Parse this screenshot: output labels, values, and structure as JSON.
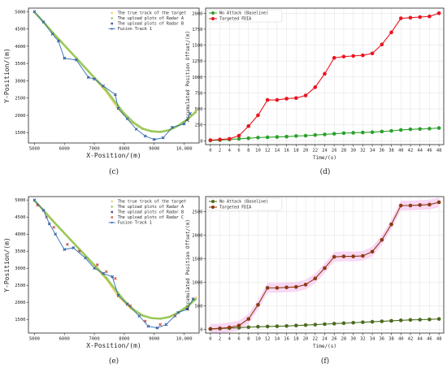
{
  "chart_data": [
    {
      "type": "scatter",
      "caption": "(c)",
      "xlabel": "X-Position/(m)",
      "ylabel": "Y-Position/(m)",
      "xlim": [
        4800,
        10500
      ],
      "ylim": [
        1200,
        5100
      ],
      "xticks": [
        5000,
        6000,
        7000,
        8000,
        9000,
        10000
      ],
      "xticklabels": [
        "5000",
        "6000",
        "7000",
        "8000",
        "9000",
        "10,000"
      ],
      "yticks": [
        1500,
        2000,
        2500,
        3000,
        3500,
        4000,
        4500,
        5000
      ],
      "legend_position": "top-right",
      "colors": {
        "true": "#f2c94c",
        "radarA": "#8bc34a",
        "radarB": "#1a237e",
        "fusion": "#2f6db5"
      },
      "series": [
        {
          "name": "The true track of the target",
          "kind": "true",
          "x": [
            5000,
            5400,
            5800,
            6200,
            6600,
            7000,
            7400,
            7800,
            8200,
            8600,
            9000,
            9400,
            9800,
            10200,
            10400
          ],
          "y": [
            5000,
            4620,
            4230,
            3840,
            3450,
            3060,
            2670,
            2170,
            1820,
            1600,
            1520,
            1550,
            1700,
            1950,
            2150
          ]
        },
        {
          "name": "The upload plots of Radar A",
          "kind": "radarA",
          "x": [
            5000,
            5300,
            5600,
            5900,
            6200,
            6500,
            6800,
            7100,
            7400,
            7700,
            8000,
            8300,
            8600,
            8900,
            9200,
            9500,
            9800,
            10100,
            10400
          ],
          "y": [
            4980,
            4700,
            4400,
            4120,
            3840,
            3560,
            3280,
            3000,
            2720,
            2380,
            2050,
            1800,
            1620,
            1540,
            1520,
            1570,
            1700,
            1880,
            2100
          ]
        },
        {
          "name": "The upload plots of Radar B",
          "kind": "radarB",
          "x": [
            5000,
            5300,
            5600,
            5800,
            6000,
            6400,
            6800,
            7000,
            7300,
            7700,
            7800,
            8100,
            8400,
            8700,
            9000,
            9300,
            9600,
            10000,
            10200
          ],
          "y": [
            5000,
            4700,
            4350,
            4150,
            3650,
            3600,
            3100,
            3050,
            2850,
            2600,
            2200,
            1900,
            1600,
            1400,
            1300,
            1350,
            1650,
            1750,
            2050
          ]
        },
        {
          "name": "Fusion Track 1",
          "kind": "fusion",
          "x": [
            5000,
            5300,
            5600,
            5800,
            6000,
            6400,
            6800,
            7000,
            7300,
            7700,
            7800,
            8100,
            8400,
            8700,
            9000,
            9300,
            9600,
            10000,
            10200
          ],
          "y": [
            5000,
            4700,
            4350,
            4150,
            3650,
            3600,
            3100,
            3050,
            2850,
            2600,
            2200,
            1900,
            1600,
            1400,
            1300,
            1350,
            1650,
            1750,
            2050
          ]
        }
      ]
    },
    {
      "type": "line",
      "caption": "(d)",
      "xlabel": "Time/(s)",
      "ylabel": "Accumulated Position Offset/(m)",
      "xlim": [
        -1,
        49
      ],
      "ylim": [
        -60,
        2080
      ],
      "xticks": [
        0,
        2,
        4,
        6,
        8,
        10,
        12,
        14,
        16,
        18,
        20,
        22,
        24,
        26,
        28,
        30,
        32,
        34,
        36,
        38,
        40,
        42,
        44,
        46,
        48
      ],
      "yticks": [
        0,
        250,
        500,
        750,
        1000,
        1250,
        1500,
        1750,
        2000
      ],
      "grid": true,
      "legend_position": "top-left",
      "colors": {
        "baseline": "#2ca02c",
        "fdia": "#e8141e"
      },
      "x": [
        0,
        2,
        4,
        6,
        8,
        10,
        12,
        14,
        16,
        18,
        20,
        22,
        24,
        26,
        28,
        30,
        32,
        34,
        36,
        38,
        40,
        42,
        44,
        46,
        48
      ],
      "series": [
        {
          "name": "No Attack (Baseline)",
          "kind": "baseline",
          "values": [
            5,
            10,
            20,
            30,
            40,
            50,
            55,
            60,
            65,
            75,
            80,
            90,
            100,
            110,
            120,
            125,
            130,
            135,
            145,
            155,
            170,
            180,
            185,
            190,
            200
          ]
        },
        {
          "name": "Targeted FDIA",
          "kind": "fdia",
          "values": [
            10,
            20,
            30,
            80,
            230,
            400,
            640,
            640,
            660,
            670,
            710,
            840,
            1050,
            1300,
            1320,
            1330,
            1340,
            1370,
            1510,
            1700,
            1920,
            1930,
            1940,
            1950,
            2000
          ]
        }
      ]
    },
    {
      "type": "scatter",
      "caption": "(e)",
      "xlabel": "X-Position/(m)",
      "ylabel": "Y-Position/(m)",
      "xlim": [
        4800,
        10500
      ],
      "ylim": [
        1100,
        5100
      ],
      "xticks": [
        5000,
        6000,
        7000,
        8000,
        9000,
        10000
      ],
      "xticklabels": [
        "5000",
        "6000",
        "7000",
        "8000",
        "9000",
        "10,000"
      ],
      "yticks": [
        1500,
        2000,
        2500,
        3000,
        3500,
        4000,
        4500,
        5000
      ],
      "legend_position": "top-right",
      "colors": {
        "true": "#f2c94c",
        "radarA": "#8bc34a",
        "radarB": "#1a237e",
        "radarC": "#c0392b",
        "fusion": "#2f6db5"
      },
      "series": [
        {
          "name": "The true track of the target",
          "kind": "true",
          "x": [
            5000,
            5400,
            5800,
            6200,
            6600,
            7000,
            7400,
            7800,
            8200,
            8600,
            9000,
            9400,
            9800,
            10200,
            10400
          ],
          "y": [
            5000,
            4620,
            4230,
            3840,
            3450,
            3060,
            2670,
            2170,
            1820,
            1600,
            1520,
            1550,
            1700,
            1950,
            2150
          ]
        },
        {
          "name": "The upload plots of Radar A",
          "kind": "radarA",
          "x": [
            5000,
            5300,
            5600,
            5900,
            6200,
            6500,
            6800,
            7100,
            7400,
            7700,
            8000,
            8300,
            8600,
            8900,
            9200,
            9500,
            9800,
            10100,
            10400
          ],
          "y": [
            4980,
            4700,
            4400,
            4120,
            3840,
            3560,
            3280,
            3000,
            2720,
            2380,
            2050,
            1800,
            1620,
            1540,
            1520,
            1570,
            1700,
            1880,
            2100
          ]
        },
        {
          "name": "The upload plots of Radar B",
          "kind": "radarB",
          "x": [
            5000,
            5300,
            5500,
            5700,
            6000,
            6300,
            6700,
            7000,
            7300,
            7600,
            7800,
            8100,
            8500,
            8800,
            9100,
            9400,
            9800,
            10100,
            10300
          ],
          "y": [
            5000,
            4700,
            4300,
            4000,
            3550,
            3600,
            3300,
            3000,
            2850,
            2750,
            2200,
            1950,
            1600,
            1300,
            1250,
            1350,
            1700,
            1800,
            2100
          ]
        },
        {
          "name": "The upload plots of Radar C",
          "kind": "radarC",
          "x": [
            5100,
            5400,
            5650,
            6100,
            6500,
            7100,
            7400,
            7700,
            8200,
            8700,
            9200,
            9700
          ],
          "y": [
            4850,
            4500,
            4200,
            3700,
            3500,
            3100,
            2900,
            2700,
            1900,
            1450,
            1350,
            1600
          ]
        },
        {
          "name": "Fusion Track 1",
          "kind": "fusion",
          "x": [
            5000,
            5300,
            5500,
            5700,
            6000,
            6300,
            6700,
            7000,
            7300,
            7600,
            7800,
            8100,
            8500,
            8800,
            9100,
            9400,
            9800,
            10100,
            10300
          ],
          "y": [
            5000,
            4700,
            4300,
            4000,
            3550,
            3600,
            3300,
            3000,
            2850,
            2750,
            2200,
            1950,
            1600,
            1300,
            1250,
            1350,
            1700,
            1800,
            2100
          ]
        }
      ]
    },
    {
      "type": "line",
      "caption": "(f)",
      "xlabel": "Time/(s)",
      "ylabel": "Accumulated Position Offset/(m)",
      "xlim": [
        -1,
        49
      ],
      "ylim": [
        -80,
        2820
      ],
      "xticks": [
        0,
        2,
        4,
        6,
        8,
        10,
        12,
        14,
        16,
        18,
        20,
        22,
        24,
        26,
        28,
        30,
        32,
        34,
        36,
        38,
        40,
        42,
        44,
        46,
        48
      ],
      "yticks": [
        0,
        500,
        1000,
        1500,
        2000,
        2500
      ],
      "grid": true,
      "legend_position": "top-left",
      "colors": {
        "baseline": "#4a6b1e",
        "fdia": "#8b3a12",
        "band": "#f7c8f0"
      },
      "x": [
        0,
        2,
        4,
        6,
        8,
        10,
        12,
        14,
        16,
        18,
        20,
        22,
        24,
        26,
        28,
        30,
        32,
        34,
        36,
        38,
        40,
        42,
        44,
        46,
        48
      ],
      "series": [
        {
          "name": "No Attack (Baseline)",
          "kind": "baseline",
          "values": [
            5,
            15,
            25,
            35,
            45,
            55,
            60,
            65,
            70,
            80,
            90,
            100,
            110,
            120,
            130,
            140,
            150,
            160,
            170,
            180,
            190,
            200,
            205,
            210,
            220
          ]
        },
        {
          "name": "Targeted FDIA",
          "kind": "fdia",
          "values": [
            10,
            20,
            40,
            80,
            220,
            520,
            880,
            880,
            890,
            900,
            950,
            1080,
            1300,
            1540,
            1550,
            1550,
            1560,
            1650,
            1900,
            2230,
            2630,
            2630,
            2640,
            2650,
            2700
          ]
        }
      ]
    }
  ]
}
